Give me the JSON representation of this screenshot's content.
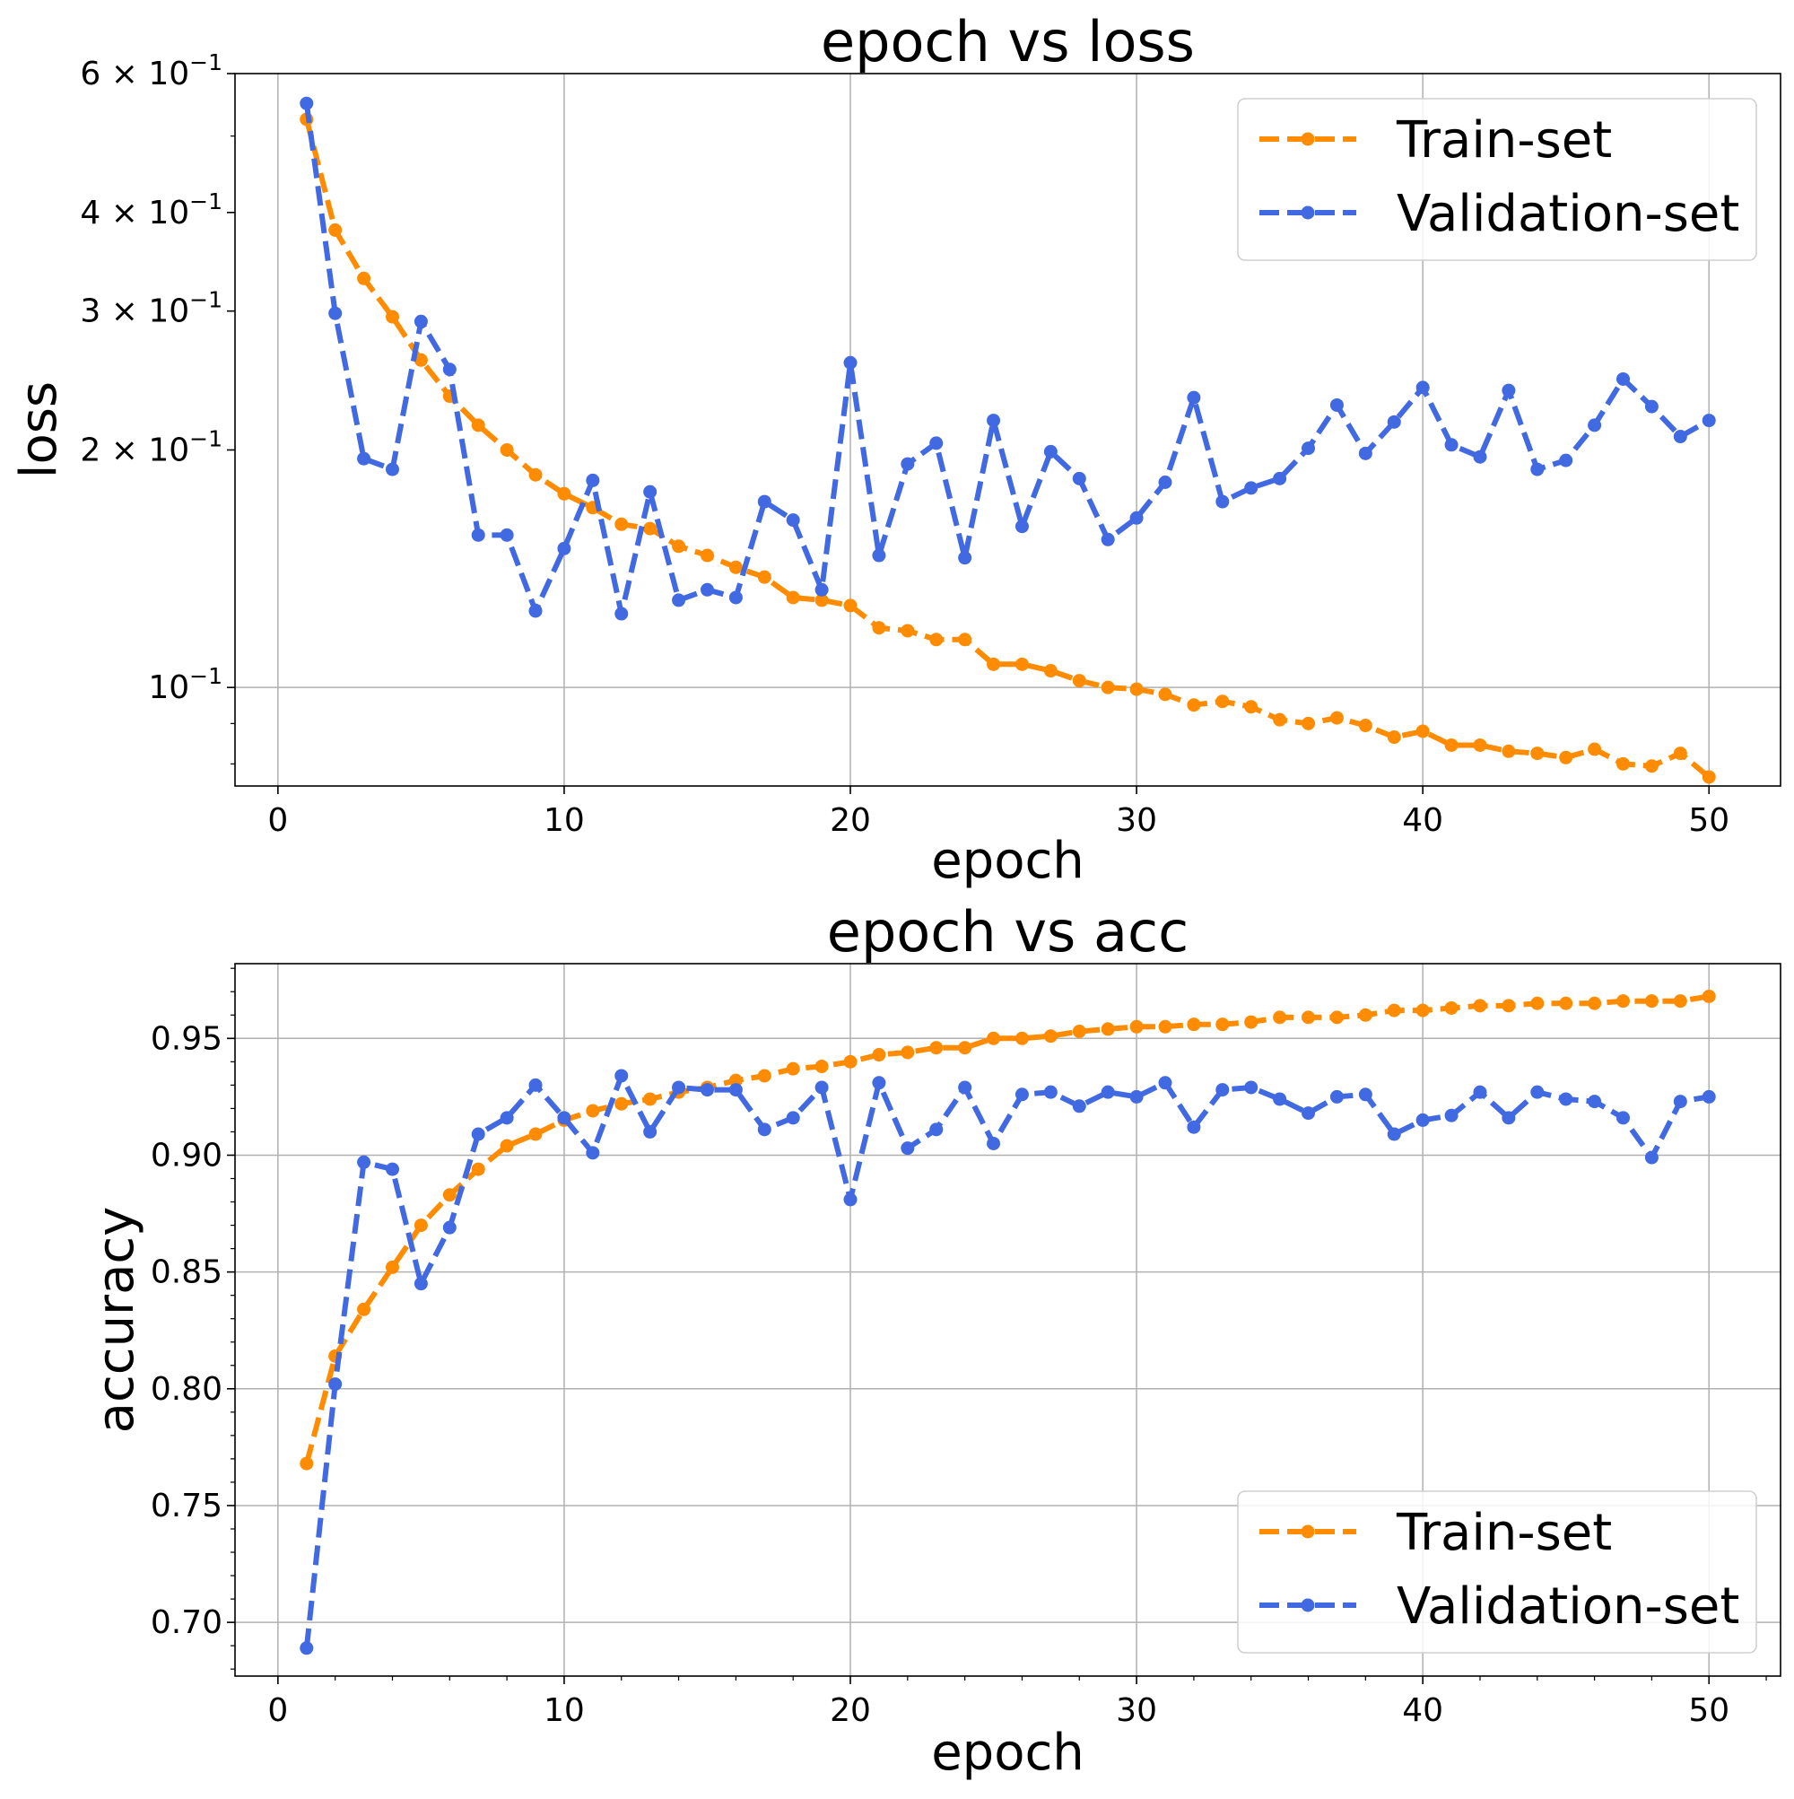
{
  "chart_data": [
    {
      "type": "line",
      "title": "epoch vs loss",
      "xlabel": "epoch",
      "ylabel": "loss",
      "yscale": "log",
      "xlim": [
        -1.5,
        52.5
      ],
      "ylim": [
        0.075,
        0.6
      ],
      "xticks": [
        0,
        10,
        20,
        30,
        40,
        50
      ],
      "xtick_labels": [
        "0",
        "10",
        "20",
        "30",
        "40",
        "50"
      ],
      "yticks": [
        {
          "value": 0.6,
          "base": "6 × 10",
          "exp": "−1"
        },
        {
          "value": 0.4,
          "base": "4 × 10",
          "exp": "−1"
        },
        {
          "value": 0.3,
          "base": "3 × 10",
          "exp": "−1"
        },
        {
          "value": 0.2,
          "base": "2 × 10",
          "exp": "−1"
        },
        {
          "value": 0.1,
          "base": "10",
          "exp": "−1"
        }
      ],
      "grid": true,
      "legend_position": "upper right",
      "x": [
        1,
        2,
        3,
        4,
        5,
        6,
        7,
        8,
        9,
        10,
        11,
        12,
        13,
        14,
        15,
        16,
        17,
        18,
        19,
        20,
        21,
        22,
        23,
        24,
        25,
        26,
        27,
        28,
        29,
        30,
        31,
        32,
        33,
        34,
        35,
        36,
        37,
        38,
        39,
        40,
        41,
        42,
        43,
        44,
        45,
        46,
        47,
        48,
        49,
        50
      ],
      "series": [
        {
          "name": "Train-set",
          "color": "#ff8c00",
          "values": [
            0.525,
            0.38,
            0.33,
            0.295,
            0.26,
            0.234,
            0.215,
            0.2,
            0.186,
            0.176,
            0.169,
            0.161,
            0.159,
            0.151,
            0.147,
            0.142,
            0.138,
            0.13,
            0.129,
            0.127,
            0.119,
            0.118,
            0.115,
            0.115,
            0.107,
            0.107,
            0.105,
            0.102,
            0.1,
            0.0995,
            0.098,
            0.095,
            0.096,
            0.0945,
            0.091,
            0.09,
            0.0915,
            0.0895,
            0.0865,
            0.088,
            0.0845,
            0.0845,
            0.083,
            0.0825,
            0.0815,
            0.0835,
            0.08,
            0.0795,
            0.0825,
            0.077
          ]
        },
        {
          "name": "Validation-set",
          "color": "#4169e1",
          "values": [
            0.55,
            0.298,
            0.195,
            0.189,
            0.291,
            0.253,
            0.156,
            0.156,
            0.125,
            0.15,
            0.183,
            0.124,
            0.177,
            0.129,
            0.133,
            0.13,
            0.172,
            0.163,
            0.133,
            0.258,
            0.147,
            0.192,
            0.204,
            0.146,
            0.218,
            0.16,
            0.199,
            0.184,
            0.154,
            0.164,
            0.182,
            0.233,
            0.172,
            0.179,
            0.184,
            0.201,
            0.228,
            0.198,
            0.217,
            0.24,
            0.203,
            0.196,
            0.238,
            0.189,
            0.194,
            0.215,
            0.246,
            0.227,
            0.208,
            0.218
          ]
        }
      ]
    },
    {
      "type": "line",
      "title": "epoch vs acc",
      "xlabel": "epoch",
      "ylabel": "accuracy",
      "yscale": "linear",
      "xlim": [
        -1.5,
        52.5
      ],
      "ylim": [
        0.677,
        0.982
      ],
      "xticks": [
        0,
        10,
        20,
        30,
        40,
        50
      ],
      "xtick_labels": [
        "0",
        "10",
        "20",
        "30",
        "40",
        "50"
      ],
      "yticks": [
        0.7,
        0.75,
        0.8,
        0.85,
        0.9,
        0.95
      ],
      "ytick_labels": [
        "0.70",
        "0.75",
        "0.80",
        "0.85",
        "0.90",
        "0.95"
      ],
      "grid": true,
      "legend_position": "lower right",
      "x": [
        1,
        2,
        3,
        4,
        5,
        6,
        7,
        8,
        9,
        10,
        11,
        12,
        13,
        14,
        15,
        16,
        17,
        18,
        19,
        20,
        21,
        22,
        23,
        24,
        25,
        26,
        27,
        28,
        29,
        30,
        31,
        32,
        33,
        34,
        35,
        36,
        37,
        38,
        39,
        40,
        41,
        42,
        43,
        44,
        45,
        46,
        47,
        48,
        49,
        50
      ],
      "series": [
        {
          "name": "Train-set",
          "color": "#ff8c00",
          "values": [
            0.768,
            0.814,
            0.834,
            0.852,
            0.87,
            0.883,
            0.894,
            0.904,
            0.909,
            0.915,
            0.919,
            0.922,
            0.924,
            0.927,
            0.929,
            0.932,
            0.934,
            0.937,
            0.938,
            0.94,
            0.943,
            0.944,
            0.946,
            0.946,
            0.95,
            0.95,
            0.951,
            0.953,
            0.954,
            0.955,
            0.955,
            0.956,
            0.956,
            0.957,
            0.959,
            0.959,
            0.959,
            0.96,
            0.962,
            0.962,
            0.963,
            0.964,
            0.964,
            0.965,
            0.965,
            0.965,
            0.966,
            0.966,
            0.966,
            0.968
          ]
        },
        {
          "name": "Validation-set",
          "color": "#4169e1",
          "values": [
            0.689,
            0.802,
            0.897,
            0.894,
            0.845,
            0.869,
            0.909,
            0.916,
            0.93,
            0.916,
            0.901,
            0.934,
            0.91,
            0.929,
            0.928,
            0.928,
            0.911,
            0.916,
            0.929,
            0.881,
            0.931,
            0.903,
            0.911,
            0.929,
            0.905,
            0.926,
            0.927,
            0.921,
            0.927,
            0.925,
            0.931,
            0.912,
            0.928,
            0.929,
            0.924,
            0.918,
            0.925,
            0.926,
            0.909,
            0.915,
            0.917,
            0.927,
            0.916,
            0.927,
            0.924,
            0.923,
            0.916,
            0.899,
            0.923,
            0.925
          ]
        }
      ]
    }
  ]
}
